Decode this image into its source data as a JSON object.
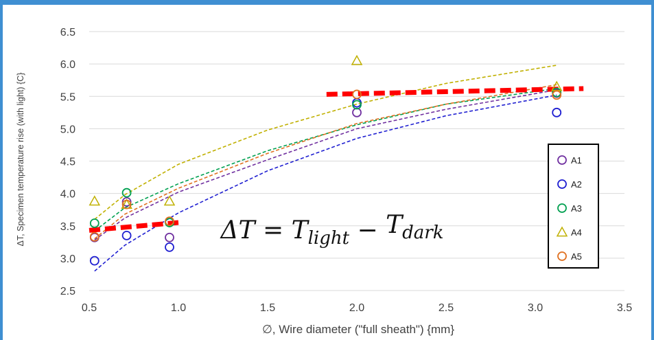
{
  "chart_data": {
    "type": "scatter",
    "xlabel": "∅, Wire diameter (\"full sheath\") {mm}",
    "ylabel": "ΔT, Specimen temperature rise (with light) {C}",
    "xlim": [
      0.5,
      3.5
    ],
    "ylim": [
      2.5,
      6.5
    ],
    "xticks": [
      "0.5",
      "1.0",
      "1.5",
      "2.0",
      "2.5",
      "3.0",
      "3.5"
    ],
    "yticks": [
      "2.5",
      "3.0",
      "3.5",
      "4.0",
      "4.5",
      "5.0",
      "5.5",
      "6.0",
      "6.5"
    ],
    "grid": true,
    "legend_position": "right",
    "annotation": "ΔT = T_light − T_dark",
    "series": [
      {
        "name": "A1",
        "color": "#7030a0",
        "marker": "circle",
        "x": [
          0.53,
          0.71,
          0.95,
          2.0,
          3.12
        ],
        "y": [
          3.32,
          3.87,
          3.32,
          5.25,
          5.55
        ]
      },
      {
        "name": "A2",
        "color": "#1f1fd1",
        "marker": "circle",
        "x": [
          0.53,
          0.71,
          0.95,
          2.0,
          3.12
        ],
        "y": [
          2.96,
          3.35,
          3.17,
          5.4,
          5.25
        ]
      },
      {
        "name": "A3",
        "color": "#00a050",
        "marker": "circle",
        "x": [
          0.53,
          0.71,
          0.95,
          2.0,
          3.12
        ],
        "y": [
          3.54,
          4.01,
          3.55,
          5.37,
          5.56
        ]
      },
      {
        "name": "A4",
        "color": "#c0b000",
        "marker": "triangle",
        "x": [
          0.53,
          0.71,
          0.95,
          2.0,
          3.12
        ],
        "y": [
          3.88,
          3.83,
          3.88,
          6.05,
          5.65
        ]
      },
      {
        "name": "A5",
        "color": "#e07020",
        "marker": "circle",
        "x": [
          0.53,
          0.71,
          0.95,
          2.0,
          3.12
        ],
        "y": [
          3.33,
          3.83,
          3.57,
          5.53,
          5.52
        ]
      }
    ],
    "trendlines": [
      {
        "series": "A1",
        "x": [
          0.53,
          0.7,
          1.0,
          1.5,
          2.0,
          2.5,
          3.12
        ],
        "y": [
          3.28,
          3.62,
          4.02,
          4.52,
          5.0,
          5.3,
          5.6
        ]
      },
      {
        "series": "A2",
        "x": [
          0.53,
          0.7,
          1.0,
          1.5,
          2.0,
          2.5,
          3.12
        ],
        "y": [
          2.8,
          3.2,
          3.7,
          4.35,
          4.85,
          5.2,
          5.52
        ]
      },
      {
        "series": "A3",
        "x": [
          0.53,
          0.7,
          1.0,
          1.5,
          2.0,
          2.5,
          3.12
        ],
        "y": [
          3.42,
          3.78,
          4.15,
          4.66,
          5.06,
          5.38,
          5.62
        ]
      },
      {
        "series": "A4",
        "x": [
          0.53,
          0.7,
          1.0,
          1.5,
          2.0,
          2.5,
          3.12
        ],
        "y": [
          3.6,
          3.98,
          4.45,
          4.98,
          5.38,
          5.7,
          5.98
        ]
      },
      {
        "series": "A5",
        "x": [
          0.53,
          0.7,
          1.0,
          1.5,
          2.0,
          2.5,
          3.12
        ],
        "y": [
          3.3,
          3.68,
          4.08,
          4.62,
          5.08,
          5.38,
          5.68
        ]
      }
    ],
    "reference_lines": [
      {
        "color": "#ff0000",
        "x": [
          0.5,
          1.0
        ],
        "y": [
          3.43,
          3.55
        ]
      },
      {
        "color": "#ff0000",
        "x": [
          1.83,
          3.27
        ],
        "y": [
          5.53,
          5.62
        ]
      }
    ]
  }
}
